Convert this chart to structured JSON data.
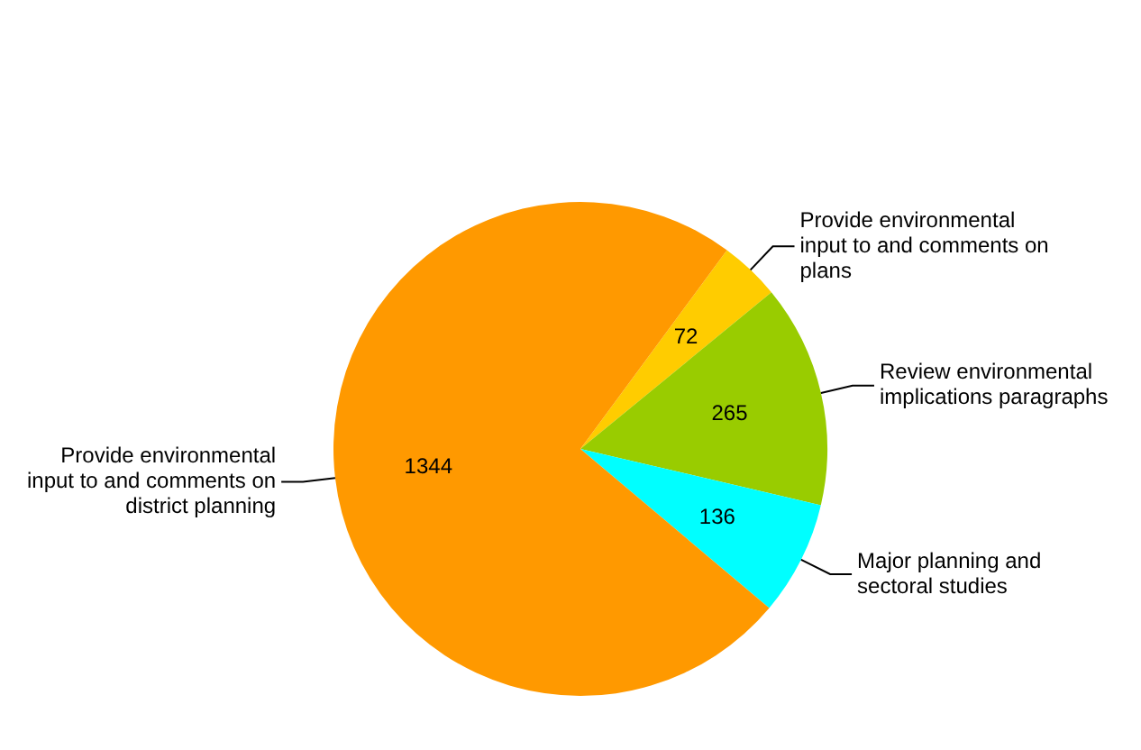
{
  "chart_data": {
    "type": "pie",
    "categories": [
      "Provide environmental input to and comments on plans",
      "Review environmental implications paragraphs",
      "Major planning and sectoral studies",
      "Provide environmental input to and comments on district planning"
    ],
    "values": [
      72,
      265,
      136,
      1344
    ],
    "colors": [
      "#ffcc00",
      "#99cc00",
      "#00ffff",
      "#ff9900"
    ],
    "data_labels": true,
    "legend": false
  }
}
